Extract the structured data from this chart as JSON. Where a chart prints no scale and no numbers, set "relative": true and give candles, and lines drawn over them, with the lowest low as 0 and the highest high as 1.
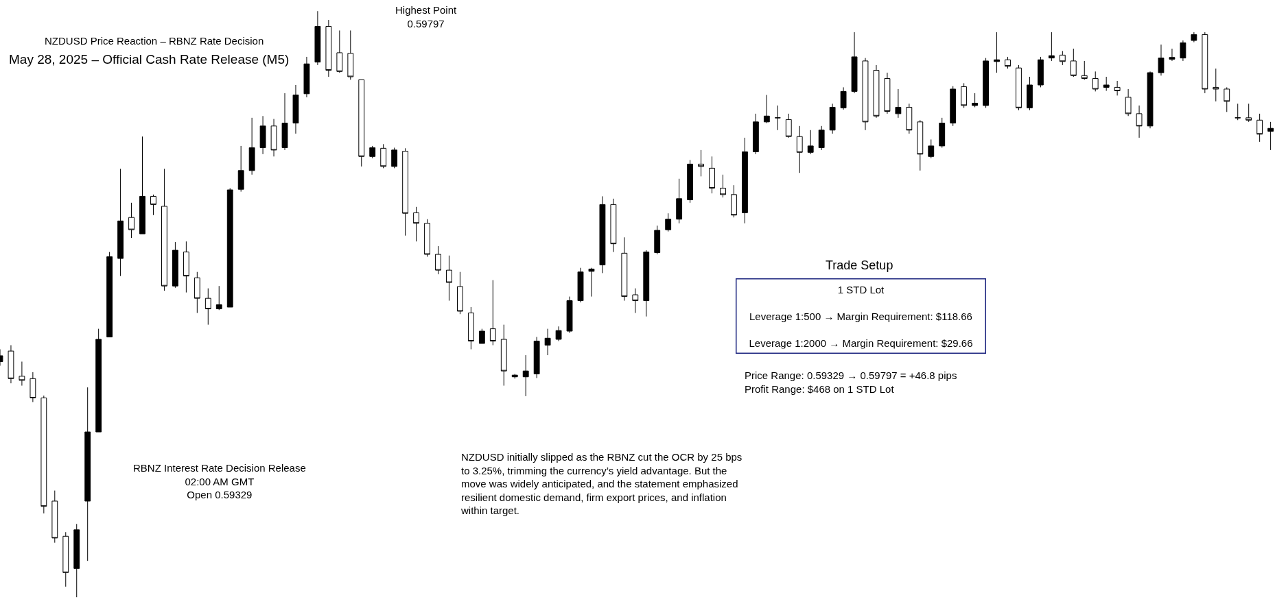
{
  "chart_data": {
    "type": "candlestick",
    "relative": true,
    "title": "NZDUSD Price Reaction – RBNZ Rate Decision",
    "subtitle": "May 28, 2025 – Official Cash Rate Release (M5)",
    "annotations": [
      "Highest Point\n0.59797",
      "RBNZ Interest Rate Decision Release\n02:00 AM GMT\nOpen 0.59329",
      "NZDUSD initially slipped as the RBNZ cut the OCR by 25 bps\nto 3.25%, trimming the currency’s yield advantage. But the\nmove was widely anticipated, and the statement emphasized\nresilient domestic demand, firm export prices, and inflation\nwithin target.",
      "Trade Setup",
      "1 STD Lot\n\nLeverage 1:500 → Margin Requirement: $118.66\n\nLeverage 1:2000 → Margin Requirement: $29.66",
      "Price Range: 0.59329 → 0.59797 = +46.8 pips\nProfit Range: $468 on 1 STD Lot"
    ],
    "categories": [
      null,
      null,
      null,
      null,
      null,
      null,
      null,
      null,
      null,
      null,
      null,
      null,
      null,
      null,
      null,
      null,
      null,
      null,
      null,
      null,
      null,
      null,
      null,
      null,
      null,
      null,
      null,
      null,
      null,
      null,
      null,
      null,
      null,
      null,
      null,
      null,
      null,
      null,
      null,
      null,
      null,
      null,
      null,
      null,
      null,
      null,
      null,
      null,
      null,
      null,
      null,
      null,
      null,
      null,
      null,
      null,
      null,
      null,
      null,
      null,
      null,
      null,
      null,
      null,
      null,
      null,
      null,
      null,
      null,
      null,
      null,
      null,
      null,
      null,
      null,
      null,
      null,
      null,
      null,
      null,
      null,
      null,
      null,
      null,
      null,
      null,
      null,
      null,
      null,
      null,
      null,
      null,
      null,
      null,
      null,
      null,
      null,
      null,
      null,
      null,
      null,
      null,
      null,
      null,
      null,
      null,
      null,
      null,
      null,
      null,
      null,
      null,
      null,
      null,
      null,
      null,
      null
    ],
    "ohlc": [
      [
        0.402,
        0.423,
        0.395,
        0.412
      ],
      [
        0.42,
        0.43,
        0.365,
        0.373
      ],
      [
        0.377,
        0.402,
        0.361,
        0.37
      ],
      [
        0.373,
        0.384,
        0.333,
        0.34
      ],
      [
        0.34,
        0.344,
        0.143,
        0.155
      ],
      [
        0.164,
        0.182,
        0.093,
        0.101
      ],
      [
        0.104,
        0.111,
        0.018,
        0.042
      ],
      [
        0.049,
        0.125,
        0,
        0.115
      ],
      [
        0.164,
        0.358,
        0.062,
        0.282
      ],
      [
        0.282,
        0.458,
        0.282,
        0.44
      ],
      [
        0.444,
        0.589,
        0.444,
        0.581
      ],
      [
        0.578,
        0.731,
        0.548,
        0.642
      ],
      [
        0.648,
        0.673,
        0.613,
        0.627
      ],
      [
        0.62,
        0.786,
        0.62,
        0.684
      ],
      [
        0.684,
        0.687,
        0.652,
        0.67
      ],
      [
        0.667,
        0.731,
        0.523,
        0.531
      ],
      [
        0.531,
        0.606,
        0.528,
        0.592
      ],
      [
        0.589,
        0.607,
        0.52,
        0.548
      ],
      [
        0.545,
        0.555,
        0.485,
        0.51
      ],
      [
        0.51,
        0.527,
        0.465,
        0.492
      ],
      [
        0.492,
        0.531,
        0.49,
        0.499
      ],
      [
        0.495,
        0.698,
        0.495,
        0.695
      ],
      [
        0.696,
        0.77,
        0.692,
        0.728
      ],
      [
        0.728,
        0.818,
        0.721,
        0.767
      ],
      [
        0.767,
        0.821,
        0.756,
        0.804
      ],
      [
        0.804,
        0.816,
        0.752,
        0.763
      ],
      [
        0.767,
        0.86,
        0.763,
        0.809
      ],
      [
        0.809,
        0.874,
        0.791,
        0.857
      ],
      [
        0.859,
        0.922,
        0.853,
        0.91
      ],
      [
        0.913,
        1,
        0.908,
        0.974
      ],
      [
        0.974,
        0.985,
        0.888,
        0.899
      ],
      [
        0.929,
        0.967,
        0.895,
        0.897
      ],
      [
        0.928,
        0.967,
        0.883,
        0.888
      ],
      [
        0.883,
        0.883,
        0.735,
        0.752
      ],
      [
        0.752,
        0.77,
        0.749,
        0.767
      ],
      [
        0.766,
        0.773,
        0.732,
        0.735
      ],
      [
        0.735,
        0.767,
        0.732,
        0.763
      ],
      [
        0.761,
        0.766,
        0.617,
        0.655
      ],
      [
        0.656,
        0.666,
        0.607,
        0.638
      ],
      [
        0.638,
        0.645,
        0.581,
        0.585
      ],
      [
        0.585,
        0.599,
        0.551,
        0.558
      ],
      [
        0.558,
        0.583,
        0.506,
        0.537
      ],
      [
        0.53,
        0.555,
        0.483,
        0.488
      ],
      [
        0.485,
        0.495,
        0.423,
        0.437
      ],
      [
        0.433,
        0.458,
        0.433,
        0.454
      ],
      [
        0.458,
        0.541,
        0.43,
        0.437
      ],
      [
        0.44,
        0.465,
        0.361,
        0.386
      ],
      [
        0.376,
        0.381,
        0.373,
        0.379
      ],
      [
        0.376,
        0.413,
        0.343,
        0.386
      ],
      [
        0.381,
        0.444,
        0.374,
        0.437
      ],
      [
        0.43,
        0.458,
        0.413,
        0.442
      ],
      [
        0.44,
        0.462,
        0.437,
        0.455
      ],
      [
        0.454,
        0.513,
        0.451,
        0.506
      ],
      [
        0.506,
        0.562,
        0.503,
        0.555
      ],
      [
        0.556,
        0.562,
        0.513,
        0.56
      ],
      [
        0.567,
        0.684,
        0.553,
        0.67
      ],
      [
        0.67,
        0.68,
        0.589,
        0.603
      ],
      [
        0.587,
        0.614,
        0.506,
        0.513
      ],
      [
        0.516,
        0.527,
        0.485,
        0.506
      ],
      [
        0.506,
        0.592,
        0.479,
        0.589
      ],
      [
        0.588,
        0.634,
        0.585,
        0.626
      ],
      [
        0.627,
        0.655,
        0.624,
        0.645
      ],
      [
        0.645,
        0.714,
        0.638,
        0.68
      ],
      [
        0.678,
        0.746,
        0.673,
        0.739
      ],
      [
        0.739,
        0.763,
        0.718,
        0.735
      ],
      [
        0.732,
        0.752,
        0.689,
        0.698
      ],
      [
        0.698,
        0.721,
        0.682,
        0.687
      ],
      [
        0.687,
        0.703,
        0.648,
        0.652
      ],
      [
        0.656,
        0.784,
        0.638,
        0.76
      ],
      [
        0.76,
        0.825,
        0.756,
        0.811
      ],
      [
        0.811,
        0.857,
        0.809,
        0.821
      ],
      [
        0.818,
        0.839,
        0.797,
        0.818
      ],
      [
        0.815,
        0.825,
        0.784,
        0.786
      ],
      [
        0.786,
        0.804,
        0.724,
        0.759
      ],
      [
        0.759,
        0.797,
        0.756,
        0.77
      ],
      [
        0.767,
        0.804,
        0.763,
        0.797
      ],
      [
        0.797,
        0.842,
        0.791,
        0.836
      ],
      [
        0.835,
        0.87,
        0.832,
        0.863
      ],
      [
        0.863,
        0.964,
        0.86,
        0.922
      ],
      [
        0.915,
        0.92,
        0.797,
        0.811
      ],
      [
        0.899,
        0.908,
        0.818,
        0.821
      ],
      [
        0.885,
        0.895,
        0.825,
        0.829
      ],
      [
        0.825,
        0.867,
        0.818,
        0.836
      ],
      [
        0.836,
        0.842,
        0.791,
        0.797
      ],
      [
        0.811,
        0.814,
        0.728,
        0.756
      ],
      [
        0.752,
        0.781,
        0.749,
        0.77
      ],
      [
        0.77,
        0.818,
        0.767,
        0.809
      ],
      [
        0.809,
        0.872,
        0.804,
        0.867
      ],
      [
        0.871,
        0.877,
        0.835,
        0.839
      ],
      [
        0.839,
        0.86,
        0.836,
        0.843
      ],
      [
        0.839,
        0.92,
        0.835,
        0.915
      ],
      [
        0.914,
        0.964,
        0.895,
        0.917
      ],
      [
        0.917,
        0.922,
        0.902,
        0.906
      ],
      [
        0.903,
        0.908,
        0.831,
        0.835
      ],
      [
        0.835,
        0.888,
        0.831,
        0.874
      ],
      [
        0.874,
        0.922,
        0.87,
        0.917
      ],
      [
        0.92,
        0.964,
        0.915,
        0.924
      ],
      [
        0.925,
        0.932,
        0.908,
        0.914
      ],
      [
        0.915,
        0.936,
        0.888,
        0.89
      ],
      [
        0.89,
        0.915,
        0.883,
        0.885
      ],
      [
        0.885,
        0.897,
        0.863,
        0.867
      ],
      [
        0.87,
        0.888,
        0.864,
        0.874
      ],
      [
        0.87,
        0.881,
        0.856,
        0.864
      ],
      [
        0.853,
        0.867,
        0.821,
        0.825
      ],
      [
        0.825,
        0.839,
        0.784,
        0.804
      ],
      [
        0.804,
        0.897,
        0.8,
        0.895
      ],
      [
        0.895,
        0.943,
        0.89,
        0.92
      ],
      [
        0.918,
        0.936,
        0.915,
        0.921
      ],
      [
        0.92,
        0.95,
        0.915,
        0.946
      ],
      [
        0.95,
        0.964,
        0.947,
        0.96
      ],
      [
        0.96,
        0.964,
        0.86,
        0.867
      ],
      [
        0.87,
        0.902,
        0.846,
        0.867
      ],
      [
        0.867,
        0.87,
        0.828,
        0.846
      ],
      [
        0.818,
        0.842,
        0.814,
        0.818
      ],
      [
        0.818,
        0.842,
        0.811,
        0.814
      ],
      [
        0.814,
        0.825,
        0.777,
        0.79
      ],
      [
        0.795,
        0.811,
        0.763,
        0.8
      ]
    ]
  }
}
